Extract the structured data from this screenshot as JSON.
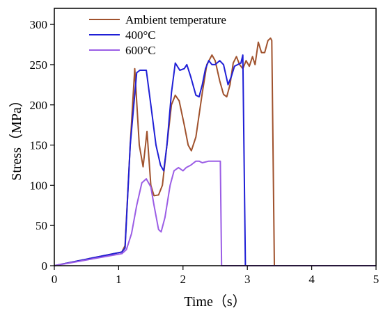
{
  "chart_data": {
    "type": "line",
    "xlabel": "Time（s）",
    "ylabel": "Stress（MPa）",
    "xlim": [
      0,
      5
    ],
    "ylim": [
      0,
      320
    ],
    "xticks": [
      0,
      1,
      2,
      3,
      4,
      5
    ],
    "yticks": [
      0,
      50,
      100,
      150,
      200,
      250,
      300
    ],
    "grid": false,
    "legend_position": "top-left",
    "series": [
      {
        "name": "Ambient temperature",
        "color": "#a0522d",
        "points": [
          [
            0,
            0
          ],
          [
            1.05,
            17
          ],
          [
            1.1,
            25
          ],
          [
            1.18,
            150
          ],
          [
            1.25,
            245
          ],
          [
            1.32,
            150
          ],
          [
            1.38,
            123
          ],
          [
            1.44,
            167
          ],
          [
            1.5,
            100
          ],
          [
            1.55,
            87
          ],
          [
            1.62,
            88
          ],
          [
            1.68,
            100
          ],
          [
            1.75,
            150
          ],
          [
            1.82,
            200
          ],
          [
            1.88,
            212
          ],
          [
            1.94,
            205
          ],
          [
            2.02,
            175
          ],
          [
            2.08,
            150
          ],
          [
            2.13,
            143
          ],
          [
            2.2,
            160
          ],
          [
            2.3,
            215
          ],
          [
            2.37,
            250
          ],
          [
            2.45,
            262
          ],
          [
            2.5,
            255
          ],
          [
            2.57,
            230
          ],
          [
            2.63,
            213
          ],
          [
            2.68,
            210
          ],
          [
            2.73,
            225
          ],
          [
            2.78,
            252
          ],
          [
            2.83,
            260
          ],
          [
            2.88,
            250
          ],
          [
            2.93,
            245
          ],
          [
            2.98,
            255
          ],
          [
            3.03,
            248
          ],
          [
            3.08,
            260
          ],
          [
            3.12,
            250
          ],
          [
            3.17,
            278
          ],
          [
            3.22,
            265
          ],
          [
            3.27,
            265
          ],
          [
            3.32,
            280
          ],
          [
            3.36,
            283
          ],
          [
            3.38,
            280
          ],
          [
            3.42,
            0
          ],
          [
            5,
            0
          ]
        ]
      },
      {
        "name": "400°C",
        "color": "#1f1fd6",
        "points": [
          [
            0,
            0
          ],
          [
            1.05,
            17
          ],
          [
            1.1,
            22
          ],
          [
            1.18,
            150
          ],
          [
            1.28,
            240
          ],
          [
            1.33,
            243
          ],
          [
            1.43,
            243
          ],
          [
            1.5,
            200
          ],
          [
            1.58,
            150
          ],
          [
            1.65,
            125
          ],
          [
            1.7,
            118
          ],
          [
            1.75,
            150
          ],
          [
            1.82,
            215
          ],
          [
            1.88,
            252
          ],
          [
            1.95,
            243
          ],
          [
            2.02,
            245
          ],
          [
            2.06,
            250
          ],
          [
            2.12,
            235
          ],
          [
            2.2,
            212
          ],
          [
            2.25,
            210
          ],
          [
            2.3,
            225
          ],
          [
            2.35,
            245
          ],
          [
            2.4,
            255
          ],
          [
            2.45,
            250
          ],
          [
            2.5,
            250
          ],
          [
            2.57,
            255
          ],
          [
            2.63,
            250
          ],
          [
            2.7,
            225
          ],
          [
            2.75,
            235
          ],
          [
            2.8,
            248
          ],
          [
            2.85,
            250
          ],
          [
            2.9,
            252
          ],
          [
            2.93,
            262
          ],
          [
            2.97,
            0
          ],
          [
            5,
            0
          ]
        ]
      },
      {
        "name": "600°C",
        "color": "#9b5de5",
        "points": [
          [
            0,
            0
          ],
          [
            1.05,
            15
          ],
          [
            1.12,
            20
          ],
          [
            1.2,
            40
          ],
          [
            1.28,
            75
          ],
          [
            1.36,
            103
          ],
          [
            1.43,
            108
          ],
          [
            1.5,
            98
          ],
          [
            1.55,
            75
          ],
          [
            1.62,
            45
          ],
          [
            1.66,
            42
          ],
          [
            1.72,
            60
          ],
          [
            1.8,
            100
          ],
          [
            1.86,
            118
          ],
          [
            1.93,
            122
          ],
          [
            2.0,
            118
          ],
          [
            2.05,
            122
          ],
          [
            2.12,
            125
          ],
          [
            2.2,
            130
          ],
          [
            2.25,
            130
          ],
          [
            2.3,
            128
          ],
          [
            2.4,
            130
          ],
          [
            2.45,
            130
          ],
          [
            2.58,
            130
          ],
          [
            2.6,
            0
          ],
          [
            5,
            0
          ]
        ]
      }
    ]
  }
}
